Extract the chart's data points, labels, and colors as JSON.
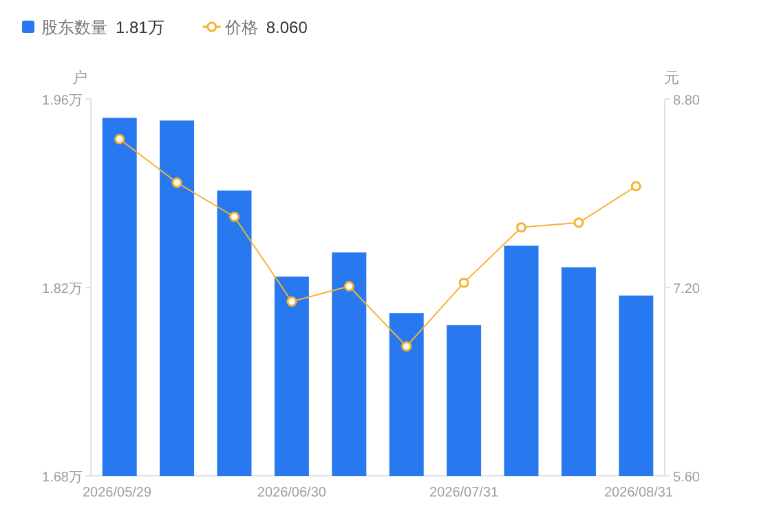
{
  "chart_data": {
    "type": "bar",
    "ylabel": "户",
    "y2label": "元",
    "categories": [
      "2026/05/29",
      null,
      null,
      "2026/06/30",
      null,
      null,
      "2026/07/31",
      null,
      null,
      "2026/08/31"
    ],
    "series": [
      {
        "name": "股东数量",
        "color": "#2878f0",
        "values": [
          1.946,
          1.944,
          1.892,
          1.828,
          1.846,
          1.801,
          1.792,
          1.851,
          1.835,
          1.814
        ]
      },
      {
        "name": "价格",
        "type": "line",
        "axis": "y2",
        "color": "#f5b335",
        "marker": "circle",
        "values": [
          8.46,
          8.09,
          7.8,
          7.08,
          7.21,
          6.7,
          7.24,
          7.71,
          7.75,
          8.06
        ]
      }
    ],
    "annotations": [
      "1.81万",
      "8.060"
    ],
    "ylim": [
      1.68,
      1.96
    ],
    "yticks": [
      {
        "value": 1.68,
        "label": "1.68万"
      },
      {
        "value": 1.82,
        "label": "1.82万"
      },
      {
        "value": 1.96,
        "label": "1.96万"
      }
    ],
    "y2lim": [
      5.6,
      8.8
    ],
    "y2ticks": [
      {
        "value": 5.6,
        "label": "5.60"
      },
      {
        "value": 7.2,
        "label": "7.20"
      },
      {
        "value": 8.8,
        "label": "8.80"
      }
    ],
    "grid": false,
    "legend": "top left"
  }
}
